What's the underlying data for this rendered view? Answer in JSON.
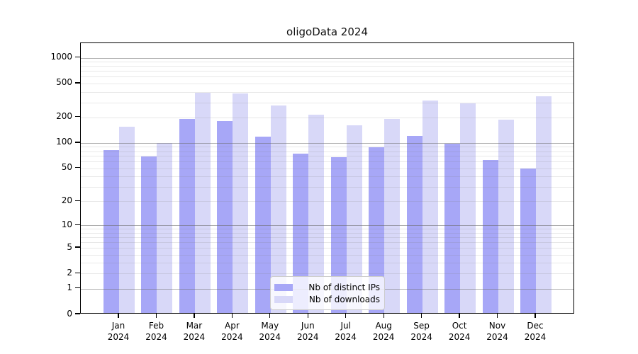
{
  "chart_data": {
    "type": "bar",
    "title": "oligoData 2024",
    "categories": [
      "Jan",
      "Feb",
      "Mar",
      "Apr",
      "May",
      "Jun",
      "Jul",
      "Aug",
      "Sep",
      "Oct",
      "Nov",
      "Dec"
    ],
    "x_tick_second_line": "2024",
    "series": [
      {
        "name": "Nb of distinct IPs",
        "color": "#a7a7f7",
        "values": [
          79,
          66,
          186,
          173,
          114,
          72,
          65,
          86,
          117,
          94,
          61,
          48
        ]
      },
      {
        "name": "Nb of downloads",
        "color": "#d8d8f8",
        "values": [
          150,
          96,
          373,
          366,
          264,
          207,
          154,
          184,
          303,
          279,
          180,
          340
        ]
      }
    ],
    "y_ticks": [
      0,
      1,
      2,
      5,
      10,
      20,
      50,
      100,
      200,
      500,
      1000
    ],
    "y_scale": "log10(1+x)",
    "ylim": [
      0,
      1480
    ],
    "grid": {
      "orientation": "horizontal",
      "major_at": [
        1,
        10,
        100,
        1000
      ],
      "minor_at": "2-9 times powers of 10",
      "major_color": "#b0b0b0",
      "minor_color": "#e8e8e8",
      "drawn_above_bars": true
    },
    "legend": {
      "position": "lower-center",
      "frame": true
    }
  }
}
